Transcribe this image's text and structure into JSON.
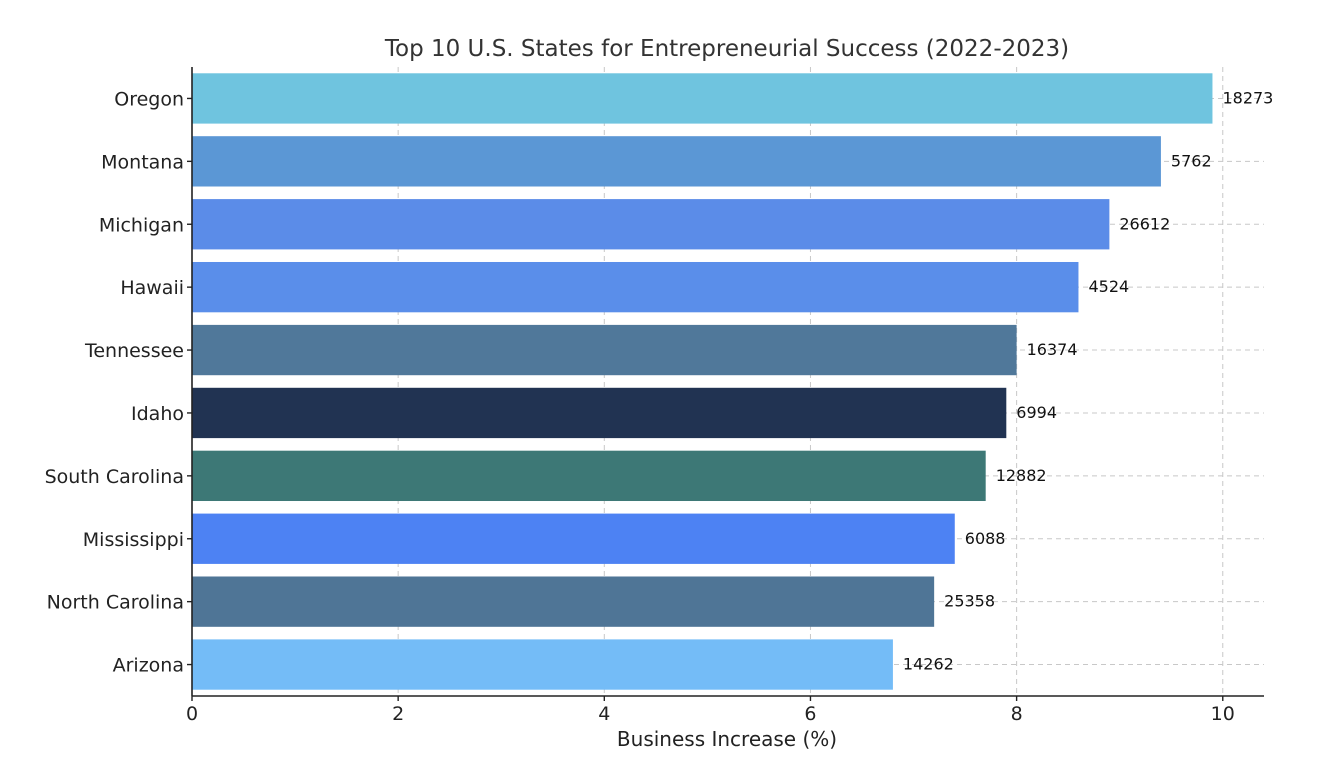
{
  "chart_data": {
    "type": "bar",
    "orientation": "horizontal",
    "title": "Top 10 U.S. States for Entrepreneurial Success (2022-2023)",
    "xlabel": "Business Increase (%)",
    "ylabel": "",
    "xlim": [
      0,
      10.4
    ],
    "xticks": [
      0,
      2,
      4,
      6,
      8,
      10
    ],
    "xtick_labels": [
      "0",
      "2",
      "4",
      "6",
      "8",
      "10"
    ],
    "grid": true,
    "categories": [
      "Oregon",
      "Montana",
      "Michigan",
      "Hawaii",
      "Tennessee",
      "Idaho",
      "South Carolina",
      "Mississippi",
      "North Carolina",
      "Arizona"
    ],
    "values": [
      9.9,
      9.4,
      8.9,
      8.6,
      8.0,
      7.9,
      7.7,
      7.4,
      7.2,
      6.8
    ],
    "data_labels": [
      "18273",
      "5762",
      "26612",
      "4524",
      "16374",
      "6994",
      "12882",
      "6088",
      "25358",
      "14262"
    ],
    "colors": [
      "#6FC4DF",
      "#5B97D5",
      "#5B8CE8",
      "#5A8EEA",
      "#50789A",
      "#213352",
      "#3D7876",
      "#4D82F3",
      "#4F7596",
      "#74BCF7"
    ]
  }
}
